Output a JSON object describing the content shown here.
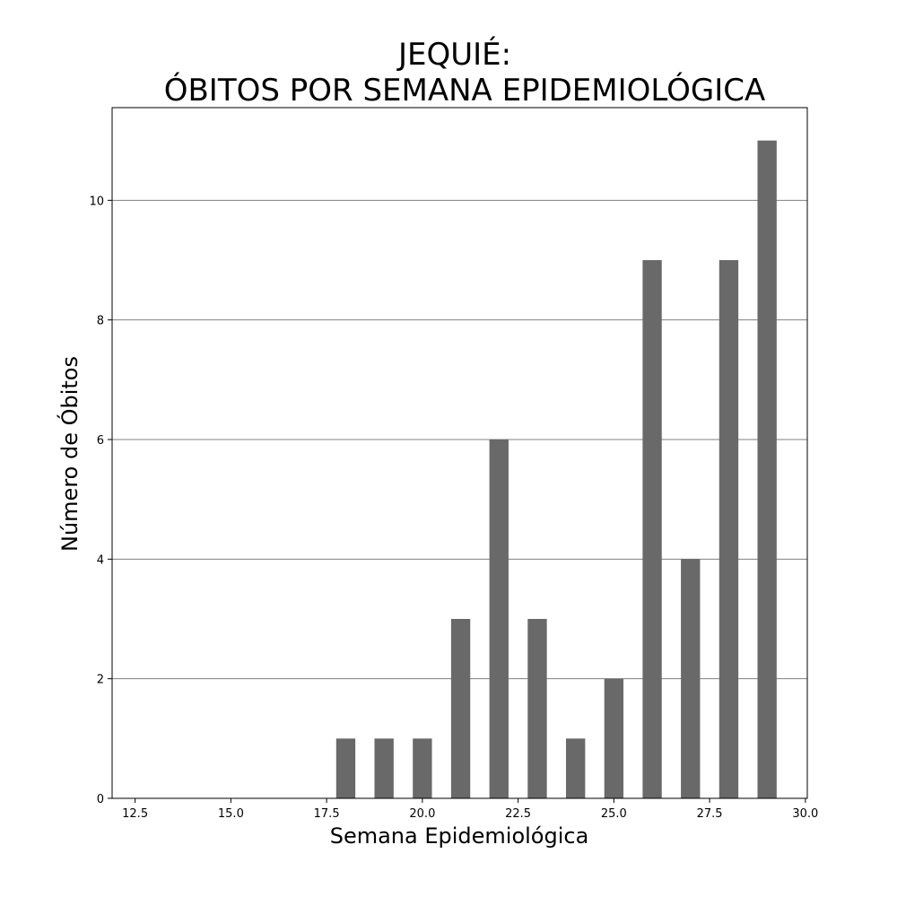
{
  "chart_data": {
    "type": "bar",
    "title_line1": "JEQUIÉ:",
    "title_line2": "ÓBITOS POR SEMANA EPIDEMIOLÓGICA",
    "xlabel": "Semana Epidemiológica",
    "ylabel": "Número de Óbitos",
    "x": [
      18,
      19,
      20,
      21,
      22,
      23,
      24,
      25,
      26,
      27,
      28,
      29
    ],
    "values": [
      1,
      1,
      1,
      3,
      6,
      3,
      1,
      2,
      9,
      4,
      9,
      11
    ],
    "xlim": [
      11.9,
      30.05
    ],
    "ylim": [
      0,
      11.55
    ],
    "xticks": [
      "12.5",
      "15.0",
      "17.5",
      "20.0",
      "22.5",
      "25.0",
      "27.5",
      "30.0"
    ],
    "xtick_values": [
      12.5,
      15.0,
      17.5,
      20.0,
      22.5,
      25.0,
      27.5,
      30.0
    ],
    "yticks": [
      "0",
      "2",
      "4",
      "6",
      "8",
      "10"
    ],
    "ytick_values": [
      0,
      2,
      4,
      6,
      8,
      10
    ],
    "bar_width": 0.5,
    "grid": "horizontal",
    "bar_color": "#696969",
    "grid_color": "#808080"
  }
}
